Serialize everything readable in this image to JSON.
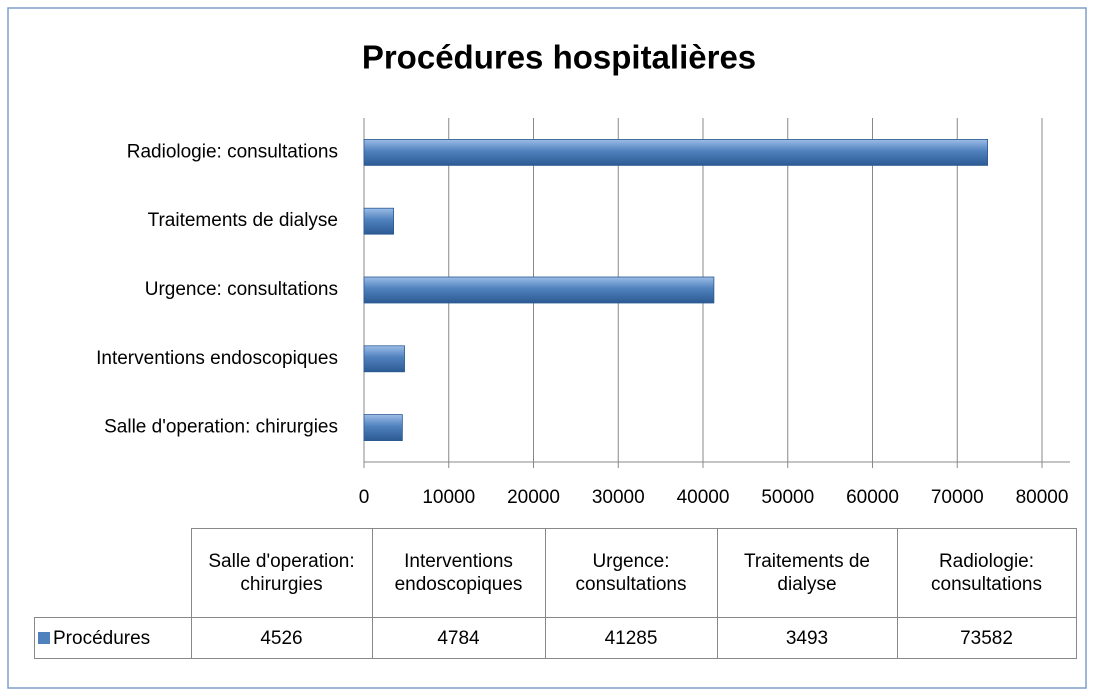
{
  "chart_data": {
    "type": "bar",
    "orientation": "horizontal",
    "title": "Procédures hospitalières",
    "categories": [
      "Salle d'operation: chirurgies",
      "Interventions endoscopiques",
      "Urgence: consultations",
      "Traitements de dialyse",
      "Radiologie: consultations"
    ],
    "series": [
      {
        "name": "Procédures",
        "color": "#4f81bd",
        "values": [
          4526,
          4784,
          41285,
          3493,
          73582
        ]
      }
    ],
    "xlim": [
      0,
      80000
    ],
    "xticks": [
      0,
      10000,
      20000,
      30000,
      40000,
      50000,
      60000,
      70000,
      80000
    ],
    "grid": true,
    "data_table": true
  }
}
